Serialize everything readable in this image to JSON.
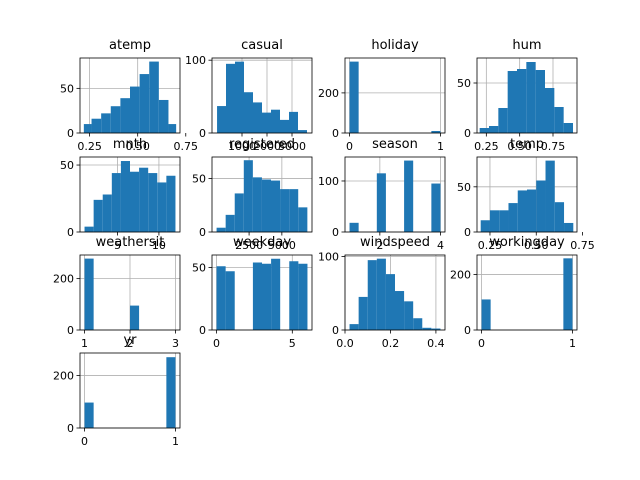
{
  "chart_data": [
    {
      "type": "bar",
      "title": "atemp",
      "bins": [
        [
          0.22,
          0.26
        ],
        [
          0.26,
          0.31
        ],
        [
          0.31,
          0.36
        ],
        [
          0.36,
          0.41
        ],
        [
          0.41,
          0.46
        ],
        [
          0.46,
          0.51
        ],
        [
          0.51,
          0.56
        ],
        [
          0.56,
          0.61
        ],
        [
          0.61,
          0.66
        ],
        [
          0.66,
          0.7
        ]
      ],
      "values": [
        10,
        16,
        22,
        30,
        39,
        52,
        66,
        80,
        37,
        10
      ],
      "xlim": [
        0.2,
        0.72
      ],
      "ylim": [
        0,
        84
      ],
      "xticks": [
        {
          "v": 0.25,
          "label": "0.25"
        },
        {
          "v": 0.5,
          "label": "0.50"
        },
        {
          "v": 0.75,
          "label": "0.75"
        }
      ],
      "yticks": [
        {
          "v": 0,
          "label": "0"
        },
        {
          "v": 50,
          "label": "50"
        }
      ],
      "grid": true
    },
    {
      "type": "bar",
      "title": "casual",
      "bins": [
        [
          2,
          360
        ],
        [
          360,
          720
        ],
        [
          720,
          1080
        ],
        [
          1080,
          1440
        ],
        [
          1440,
          1800
        ],
        [
          1800,
          2160
        ],
        [
          2160,
          2520
        ],
        [
          2520,
          2880
        ],
        [
          2880,
          3240
        ],
        [
          3240,
          3600
        ]
      ],
      "values": [
        37,
        95,
        98,
        56,
        42,
        28,
        32,
        18,
        29,
        4
      ],
      "xlim": [
        -200,
        3800
      ],
      "ylim": [
        0,
        103
      ],
      "xticks": [
        {
          "v": 1000,
          "label": "1000"
        },
        {
          "v": 2000,
          "label": "2000"
        },
        {
          "v": 3000,
          "label": "3000"
        }
      ],
      "yticks": [
        {
          "v": 0,
          "label": "0"
        },
        {
          "v": 100,
          "label": "100"
        }
      ],
      "grid": true
    },
    {
      "type": "bar",
      "title": "holiday",
      "bins": [
        [
          0,
          0.1
        ],
        [
          0.9,
          1
        ]
      ],
      "values": [
        356,
        10
      ],
      "xlim": [
        -0.05,
        1.05
      ],
      "ylim": [
        0,
        374
      ],
      "xticks": [
        {
          "v": 0,
          "label": "0"
        },
        {
          "v": 1,
          "label": "1"
        }
      ],
      "yticks": [
        {
          "v": 0,
          "label": "0"
        },
        {
          "v": 200,
          "label": "200"
        }
      ],
      "grid": true
    },
    {
      "type": "bar",
      "title": "hum",
      "bins": [
        [
          0.2,
          0.27
        ],
        [
          0.27,
          0.34
        ],
        [
          0.34,
          0.41
        ],
        [
          0.41,
          0.48
        ],
        [
          0.48,
          0.55
        ],
        [
          0.55,
          0.62
        ],
        [
          0.62,
          0.69
        ],
        [
          0.69,
          0.76
        ],
        [
          0.76,
          0.83
        ],
        [
          0.83,
          0.9
        ]
      ],
      "values": [
        5,
        7,
        25,
        62,
        64,
        71,
        63,
        45,
        26,
        10
      ],
      "xlim": [
        0.18,
        0.93
      ],
      "ylim": [
        0,
        75
      ],
      "xticks": [
        {
          "v": 0.25,
          "label": "0.25"
        },
        {
          "v": 0.5,
          "label": "0.50"
        },
        {
          "v": 0.75,
          "label": "0.75"
        }
      ],
      "yticks": [
        {
          "v": 0,
          "label": "0"
        },
        {
          "v": 50,
          "label": "50"
        }
      ],
      "grid": true
    },
    {
      "type": "bar",
      "title": "mnth",
      "bins": [
        [
          1,
          2.1
        ],
        [
          2.1,
          3.2
        ],
        [
          3.2,
          4.3
        ],
        [
          4.3,
          5.4
        ],
        [
          5.4,
          6.5
        ],
        [
          6.5,
          7.6
        ],
        [
          7.6,
          8.7
        ],
        [
          8.7,
          9.8
        ],
        [
          9.8,
          10.9
        ],
        [
          10.9,
          12
        ]
      ],
      "values": [
        4,
        24,
        28,
        44,
        53,
        45,
        48,
        44,
        37,
        42
      ],
      "xlim": [
        0.45,
        12.55
      ],
      "ylim": [
        0,
        56
      ],
      "xticks": [
        {
          "v": 5,
          "label": "5"
        },
        {
          "v": 10,
          "label": "10"
        }
      ],
      "yticks": [
        {
          "v": 0,
          "label": "0"
        },
        {
          "v": 50,
          "label": "50"
        }
      ],
      "grid": true
    },
    {
      "type": "bar",
      "title": "registered",
      "bins": [
        [
          20,
          712
        ],
        [
          712,
          1404
        ],
        [
          1404,
          2096
        ],
        [
          2096,
          2788
        ],
        [
          2788,
          3480
        ],
        [
          3480,
          4172
        ],
        [
          4172,
          4864
        ],
        [
          4864,
          5556
        ],
        [
          5556,
          6248
        ],
        [
          6248,
          6946
        ]
      ],
      "values": [
        4,
        16,
        36,
        67,
        51,
        49,
        48,
        40,
        40,
        23
      ],
      "xlim": [
        -330,
        7300
      ],
      "ylim": [
        0,
        70
      ],
      "xticks": [
        {
          "v": 2500,
          "label": "2500"
        },
        {
          "v": 5000,
          "label": "5000"
        }
      ],
      "yticks": [
        {
          "v": 0,
          "label": "0"
        },
        {
          "v": 50,
          "label": "50"
        }
      ],
      "grid": true
    },
    {
      "type": "bar",
      "title": "season",
      "bins": [
        [
          1,
          1.3
        ],
        [
          1.9,
          2.2
        ],
        [
          2.8,
          3.1
        ],
        [
          3.7,
          4
        ]
      ],
      "values": [
        18,
        115,
        140,
        95
      ],
      "xlim": [
        0.85,
        4.15
      ],
      "ylim": [
        0,
        147
      ],
      "xticks": [
        {
          "v": 2,
          "label": "2"
        },
        {
          "v": 4,
          "label": "4"
        }
      ],
      "yticks": [
        {
          "v": 0,
          "label": "0"
        },
        {
          "v": 100,
          "label": "100"
        }
      ],
      "grid": true
    },
    {
      "type": "bar",
      "title": "temp",
      "bins": [
        [
          0.2,
          0.25
        ],
        [
          0.25,
          0.3
        ],
        [
          0.3,
          0.35
        ],
        [
          0.35,
          0.4
        ],
        [
          0.4,
          0.45
        ],
        [
          0.45,
          0.5
        ],
        [
          0.5,
          0.55
        ],
        [
          0.55,
          0.6
        ],
        [
          0.6,
          0.65
        ],
        [
          0.65,
          0.7
        ]
      ],
      "values": [
        13,
        24,
        24,
        32,
        46,
        47,
        57,
        79,
        33,
        10
      ],
      "xlim": [
        0.18,
        0.72
      ],
      "ylim": [
        0,
        83
      ],
      "xticks": [
        {
          "v": 0.25,
          "label": "0.25"
        },
        {
          "v": 0.5,
          "label": "0.50"
        },
        {
          "v": 0.75,
          "label": "0.75"
        }
      ],
      "yticks": [
        {
          "v": 0,
          "label": "0"
        },
        {
          "v": 50,
          "label": "50"
        }
      ],
      "grid": true
    },
    {
      "type": "bar",
      "title": "weathersit",
      "bins": [
        [
          1,
          1.2
        ],
        [
          1.2,
          1.8
        ],
        [
          1.8,
          2
        ],
        [
          2,
          2.2
        ],
        [
          2.2,
          2.8
        ],
        [
          2.8,
          3
        ]
      ],
      "values": [
        278,
        0,
        0,
        95,
        0,
        0
      ],
      "xlim": [
        0.9,
        3.1
      ],
      "ylim": [
        0,
        292
      ],
      "xticks": [
        {
          "v": 1,
          "label": "1"
        },
        {
          "v": 2,
          "label": "2"
        },
        {
          "v": 3,
          "label": "3"
        }
      ],
      "yticks": [
        {
          "v": 0,
          "label": "0"
        },
        {
          "v": 200,
          "label": "200"
        }
      ],
      "grid": true
    },
    {
      "type": "bar",
      "title": "weekday",
      "bins": [
        [
          0,
          0.6
        ],
        [
          0.6,
          1.2
        ],
        [
          1.8,
          2.4
        ],
        [
          2.4,
          3.0
        ],
        [
          3.0,
          3.6
        ],
        [
          3.6,
          4.2
        ],
        [
          4.8,
          5.4
        ],
        [
          5.4,
          6
        ]
      ],
      "values": [
        51,
        47,
        0,
        54,
        53,
        57,
        55,
        53
      ],
      "xlim": [
        -0.3,
        6.3
      ],
      "ylim": [
        0,
        60
      ],
      "xticks": [
        {
          "v": 0,
          "label": "0"
        },
        {
          "v": 5,
          "label": "5"
        }
      ],
      "yticks": [
        {
          "v": 0,
          "label": "0"
        },
        {
          "v": 50,
          "label": "50"
        }
      ],
      "grid": true
    },
    {
      "type": "bar",
      "title": "windspeed",
      "bins": [
        [
          0.02,
          0.06
        ],
        [
          0.06,
          0.1
        ],
        [
          0.1,
          0.14
        ],
        [
          0.14,
          0.18
        ],
        [
          0.18,
          0.22
        ],
        [
          0.22,
          0.26
        ],
        [
          0.26,
          0.3
        ],
        [
          0.3,
          0.34
        ],
        [
          0.34,
          0.38
        ],
        [
          0.38,
          0.42
        ]
      ],
      "values": [
        8,
        45,
        95,
        97,
        76,
        53,
        39,
        16,
        3,
        2
      ],
      "xlim": [
        0,
        0.44
      ],
      "ylim": [
        0,
        102
      ],
      "xticks": [
        {
          "v": 0.0,
          "label": "0.0"
        },
        {
          "v": 0.2,
          "label": "0.2"
        },
        {
          "v": 0.4,
          "label": "0.4"
        }
      ],
      "yticks": [
        {
          "v": 0,
          "label": "0"
        },
        {
          "v": 100,
          "label": "100"
        }
      ],
      "grid": true
    },
    {
      "type": "bar",
      "title": "workingday",
      "bins": [
        [
          0,
          0.1
        ],
        [
          0.9,
          1
        ]
      ],
      "values": [
        110,
        258
      ],
      "xlim": [
        -0.05,
        1.05
      ],
      "ylim": [
        0,
        270
      ],
      "xticks": [
        {
          "v": 0,
          "label": "0"
        },
        {
          "v": 1,
          "label": "1"
        }
      ],
      "yticks": [
        {
          "v": 0,
          "label": "0"
        },
        {
          "v": 200,
          "label": "200"
        }
      ],
      "grid": true
    },
    {
      "type": "bar",
      "title": "yr",
      "bins": [
        [
          0,
          0.1
        ],
        [
          0.9,
          1
        ]
      ],
      "values": [
        97,
        270
      ],
      "xlim": [
        -0.05,
        1.05
      ],
      "ylim": [
        0,
        286
      ],
      "xticks": [
        {
          "v": 0,
          "label": "0"
        },
        {
          "v": 1,
          "label": "1"
        }
      ],
      "yticks": [
        {
          "v": 0,
          "label": "0"
        },
        {
          "v": 200,
          "label": "200"
        }
      ],
      "grid": true
    }
  ],
  "colors": {
    "bar": "#1f77b4",
    "grid": "#b0b0b0",
    "axis": "#000000"
  }
}
